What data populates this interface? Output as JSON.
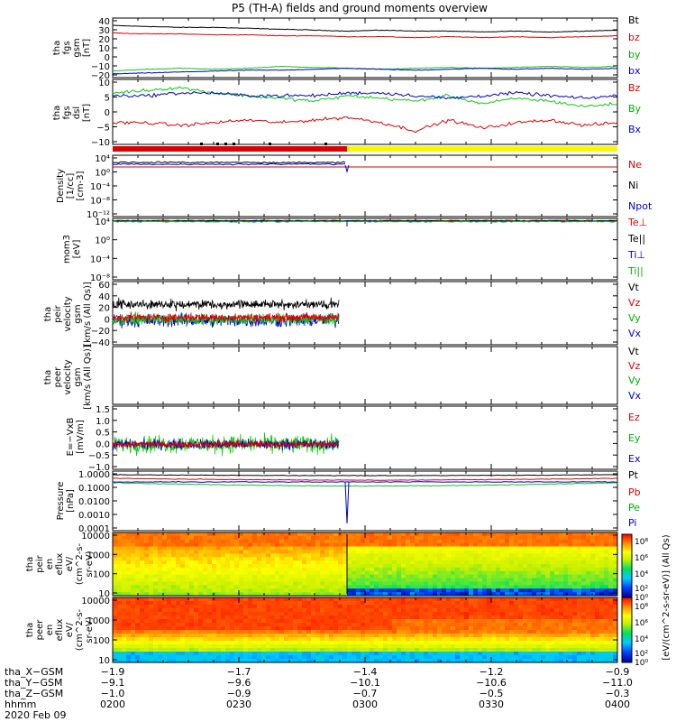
{
  "title": "P5 (TH-A) fields and ground moments overview",
  "colors": {
    "black": "#000000",
    "red": "#e00000",
    "green": "#00c800",
    "blue": "#0000d0",
    "yellow": "#f8f800"
  },
  "chart_data": [
    {
      "type": "line",
      "id": "fgs_gsm",
      "ylabel_lines": [
        "tha",
        "fgs",
        "gsm",
        "[nT]"
      ],
      "yticks": [
        "40",
        "30",
        "20",
        "10",
        "0",
        "−10",
        "−20"
      ],
      "ylim": [
        -22,
        42
      ],
      "series": [
        {
          "name": "Bt",
          "color": "black",
          "approx": [
            34,
            33,
            32,
            32,
            31,
            30,
            29,
            28,
            29,
            28,
            28,
            27,
            28,
            27,
            28,
            29
          ]
        },
        {
          "name": "bz",
          "color": "red",
          "approx": [
            26,
            25,
            25,
            24,
            24,
            23,
            23,
            22,
            22,
            21,
            22,
            21,
            22,
            21,
            22,
            23
          ]
        },
        {
          "name": "by",
          "color": "green",
          "approx": [
            -15,
            -13,
            -12,
            -13,
            -12,
            -10,
            -11,
            -12,
            -13,
            -12,
            -11,
            -12,
            -11,
            -10,
            -11,
            -10
          ]
        },
        {
          "name": "bx",
          "color": "blue",
          "approx": [
            -18,
            -17,
            -16,
            -15,
            -14,
            -14,
            -13,
            -12,
            -13,
            -14,
            -13,
            -12,
            -13,
            -12,
            -13,
            -12
          ]
        }
      ]
    },
    {
      "type": "line",
      "id": "fgs_dsl",
      "ylabel_lines": [
        "tha",
        "fgs",
        "dsl",
        "[nT]"
      ],
      "yticks": [
        "10",
        "5",
        "0",
        "−5",
        "−10"
      ],
      "ylim": [
        -13,
        11
      ],
      "series": [
        {
          "name": "Bz",
          "color": "red",
          "approx": [
            -5,
            -5,
            -6,
            -5,
            -4,
            -5,
            -4,
            -3,
            -5,
            -8,
            -4,
            -7,
            -5,
            -4,
            -6,
            -5
          ]
        },
        {
          "name": "By",
          "color": "green",
          "approx": [
            6,
            7,
            8,
            6,
            5,
            4,
            3,
            5,
            4,
            3,
            5,
            2,
            4,
            3,
            1,
            2
          ]
        },
        {
          "name": "Bx",
          "color": "blue",
          "approx": [
            5,
            5,
            6,
            6,
            5,
            5,
            5,
            6,
            6,
            5,
            4,
            5,
            6,
            5,
            4,
            5
          ]
        }
      ]
    },
    {
      "type": "line",
      "id": "density",
      "ylabel_lines": [
        "Density",
        "[1/cc]",
        "[cm-3]"
      ],
      "yticks": [
        "10⁴",
        "10⁰",
        "10⁻⁴",
        "10⁻⁸",
        "10⁻¹²"
      ],
      "series": [
        {
          "name": "Ne",
          "color": "red"
        },
        {
          "name": "Ni",
          "color": "black"
        },
        {
          "name": "Npot",
          "color": "blue"
        }
      ]
    },
    {
      "type": "line",
      "id": "temperature",
      "ylabel_lines": [
        "mom3",
        "[eV]"
      ],
      "yticks": [
        "10⁴",
        "10⁰",
        "10⁻⁴",
        "10⁻⁸"
      ],
      "series": [
        {
          "name": "Te⊥",
          "color": "red"
        },
        {
          "name": "Te||",
          "color": "black"
        },
        {
          "name": "Ti⊥",
          "color": "blue"
        },
        {
          "name": "Ti||",
          "color": "green"
        }
      ]
    },
    {
      "type": "line",
      "id": "peir_velocity",
      "ylabel_lines": [
        "tha",
        "peir",
        "velocity",
        "gsm",
        "[km/s (All Qs)]"
      ],
      "yticks": [
        "60",
        "40",
        "20",
        "0",
        "−20",
        "−40"
      ],
      "ylim": [
        -42,
        62
      ],
      "series": [
        {
          "name": "Vt",
          "color": "black"
        },
        {
          "name": "Vz",
          "color": "red"
        },
        {
          "name": "Vy",
          "color": "green"
        },
        {
          "name": "Vx",
          "color": "blue"
        }
      ]
    },
    {
      "type": "line",
      "id": "peer_velocity",
      "ylabel_lines": [
        "tha",
        "peer",
        "velocity",
        "gsm",
        "[km/s (All Qs)]"
      ],
      "yticks": [],
      "series": [
        {
          "name": "Vt",
          "color": "black"
        },
        {
          "name": "Vz",
          "color": "red"
        },
        {
          "name": "Vy",
          "color": "green"
        },
        {
          "name": "Vx",
          "color": "blue"
        }
      ]
    },
    {
      "type": "line",
      "id": "e_vxb",
      "ylabel_lines": [
        "E=−VxB",
        "[mV/m]"
      ],
      "yticks": [
        "1.5",
        "1.0",
        "0.5",
        "0.0",
        "−0.5",
        "−1.0"
      ],
      "ylim": [
        -1.05,
        1.6
      ],
      "series": [
        {
          "name": "Ez",
          "color": "red"
        },
        {
          "name": "Ey",
          "color": "green"
        },
        {
          "name": "Ex",
          "color": "blue"
        }
      ]
    },
    {
      "type": "line",
      "id": "pressure",
      "ylabel_lines": [
        "Pressure",
        "[nPa]"
      ],
      "yticks": [
        "1.0000",
        "0.1000",
        "0.0100",
        "0.0010",
        "0.0001"
      ],
      "log": true,
      "series": [
        {
          "name": "Pt",
          "color": "black"
        },
        {
          "name": "Pb",
          "color": "red"
        },
        {
          "name": "Pe",
          "color": "green"
        },
        {
          "name": "Pi",
          "color": "blue"
        }
      ]
    },
    {
      "type": "heatmap",
      "id": "peir_spectrogram",
      "ylabel_lines": [
        "tha",
        "peir",
        "en",
        "eflux",
        "eV/",
        "(cm^2-s-",
        "sr-eV)"
      ],
      "yticks": [
        "10000",
        "1000",
        "100",
        "10"
      ],
      "log": true
    },
    {
      "type": "heatmap",
      "id": "peer_spectrogram",
      "ylabel_lines": [
        "tha",
        "peer",
        "en",
        "eflux",
        "eV/",
        "(cm^2-s-",
        "sr-eV)"
      ],
      "yticks": [
        "10000",
        "1000",
        "100",
        "10"
      ],
      "log": true
    }
  ],
  "colorbar": {
    "label": "[eV/(cm^2-s-sr-eV)] (All Qs)",
    "ticks": [
      "10⁸",
      "10⁶",
      "10⁴",
      "10²",
      "10⁰",
      "10⁸",
      "10⁶",
      "10⁴",
      "10²",
      "10⁰"
    ]
  },
  "x_axis": {
    "rows": [
      {
        "label": "tha_X−GSM",
        "values": [
          "−1.9",
          "−1.7",
          "−1.4",
          "−1.2",
          "−0.9"
        ]
      },
      {
        "label": "tha_Y−GSM",
        "values": [
          "−9.1",
          "−9.6",
          "−10.1",
          "−10.6",
          "−11.0"
        ]
      },
      {
        "label": "tha_Z−GSM",
        "values": [
          "−1.0",
          "−0.9",
          "−0.7",
          "−0.5",
          "−0.3"
        ]
      },
      {
        "label": "hhmm",
        "values": [
          "0200",
          "0230",
          "0300",
          "0330",
          "0400"
        ]
      }
    ],
    "date": "2020 Feb 09"
  }
}
